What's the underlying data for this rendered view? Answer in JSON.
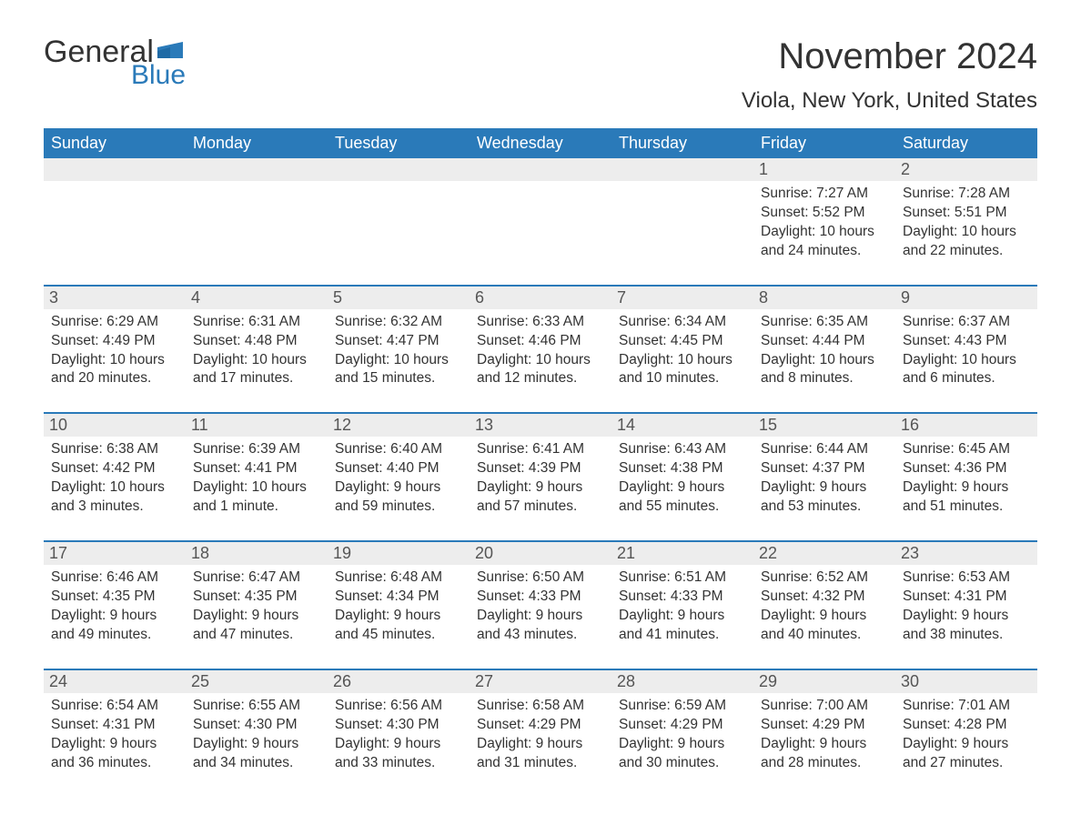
{
  "logo": {
    "word1": "General",
    "word2": "Blue",
    "flag_color": "#2a7ab9"
  },
  "title": "November 2024",
  "location": "Viola, New York, United States",
  "colors": {
    "header_bg": "#2a7ab9",
    "header_text": "#ffffff",
    "daynum_bg": "#ededed",
    "daynum_text": "#555555",
    "body_text": "#333333",
    "border": "#2a7ab9",
    "page_bg": "#ffffff"
  },
  "day_names": [
    "Sunday",
    "Monday",
    "Tuesday",
    "Wednesday",
    "Thursday",
    "Friday",
    "Saturday"
  ],
  "weeks": [
    [
      {
        "empty": true
      },
      {
        "empty": true
      },
      {
        "empty": true
      },
      {
        "empty": true
      },
      {
        "empty": true
      },
      {
        "n": "1",
        "sunrise": "Sunrise: 7:27 AM",
        "sunset": "Sunset: 5:52 PM",
        "d1": "Daylight: 10 hours",
        "d2": "and 24 minutes."
      },
      {
        "n": "2",
        "sunrise": "Sunrise: 7:28 AM",
        "sunset": "Sunset: 5:51 PM",
        "d1": "Daylight: 10 hours",
        "d2": "and 22 minutes."
      }
    ],
    [
      {
        "n": "3",
        "sunrise": "Sunrise: 6:29 AM",
        "sunset": "Sunset: 4:49 PM",
        "d1": "Daylight: 10 hours",
        "d2": "and 20 minutes."
      },
      {
        "n": "4",
        "sunrise": "Sunrise: 6:31 AM",
        "sunset": "Sunset: 4:48 PM",
        "d1": "Daylight: 10 hours",
        "d2": "and 17 minutes."
      },
      {
        "n": "5",
        "sunrise": "Sunrise: 6:32 AM",
        "sunset": "Sunset: 4:47 PM",
        "d1": "Daylight: 10 hours",
        "d2": "and 15 minutes."
      },
      {
        "n": "6",
        "sunrise": "Sunrise: 6:33 AM",
        "sunset": "Sunset: 4:46 PM",
        "d1": "Daylight: 10 hours",
        "d2": "and 12 minutes."
      },
      {
        "n": "7",
        "sunrise": "Sunrise: 6:34 AM",
        "sunset": "Sunset: 4:45 PM",
        "d1": "Daylight: 10 hours",
        "d2": "and 10 minutes."
      },
      {
        "n": "8",
        "sunrise": "Sunrise: 6:35 AM",
        "sunset": "Sunset: 4:44 PM",
        "d1": "Daylight: 10 hours",
        "d2": "and 8 minutes."
      },
      {
        "n": "9",
        "sunrise": "Sunrise: 6:37 AM",
        "sunset": "Sunset: 4:43 PM",
        "d1": "Daylight: 10 hours",
        "d2": "and 6 minutes."
      }
    ],
    [
      {
        "n": "10",
        "sunrise": "Sunrise: 6:38 AM",
        "sunset": "Sunset: 4:42 PM",
        "d1": "Daylight: 10 hours",
        "d2": "and 3 minutes."
      },
      {
        "n": "11",
        "sunrise": "Sunrise: 6:39 AM",
        "sunset": "Sunset: 4:41 PM",
        "d1": "Daylight: 10 hours",
        "d2": "and 1 minute."
      },
      {
        "n": "12",
        "sunrise": "Sunrise: 6:40 AM",
        "sunset": "Sunset: 4:40 PM",
        "d1": "Daylight: 9 hours",
        "d2": "and 59 minutes."
      },
      {
        "n": "13",
        "sunrise": "Sunrise: 6:41 AM",
        "sunset": "Sunset: 4:39 PM",
        "d1": "Daylight: 9 hours",
        "d2": "and 57 minutes."
      },
      {
        "n": "14",
        "sunrise": "Sunrise: 6:43 AM",
        "sunset": "Sunset: 4:38 PM",
        "d1": "Daylight: 9 hours",
        "d2": "and 55 minutes."
      },
      {
        "n": "15",
        "sunrise": "Sunrise: 6:44 AM",
        "sunset": "Sunset: 4:37 PM",
        "d1": "Daylight: 9 hours",
        "d2": "and 53 minutes."
      },
      {
        "n": "16",
        "sunrise": "Sunrise: 6:45 AM",
        "sunset": "Sunset: 4:36 PM",
        "d1": "Daylight: 9 hours",
        "d2": "and 51 minutes."
      }
    ],
    [
      {
        "n": "17",
        "sunrise": "Sunrise: 6:46 AM",
        "sunset": "Sunset: 4:35 PM",
        "d1": "Daylight: 9 hours",
        "d2": "and 49 minutes."
      },
      {
        "n": "18",
        "sunrise": "Sunrise: 6:47 AM",
        "sunset": "Sunset: 4:35 PM",
        "d1": "Daylight: 9 hours",
        "d2": "and 47 minutes."
      },
      {
        "n": "19",
        "sunrise": "Sunrise: 6:48 AM",
        "sunset": "Sunset: 4:34 PM",
        "d1": "Daylight: 9 hours",
        "d2": "and 45 minutes."
      },
      {
        "n": "20",
        "sunrise": "Sunrise: 6:50 AM",
        "sunset": "Sunset: 4:33 PM",
        "d1": "Daylight: 9 hours",
        "d2": "and 43 minutes."
      },
      {
        "n": "21",
        "sunrise": "Sunrise: 6:51 AM",
        "sunset": "Sunset: 4:33 PM",
        "d1": "Daylight: 9 hours",
        "d2": "and 41 minutes."
      },
      {
        "n": "22",
        "sunrise": "Sunrise: 6:52 AM",
        "sunset": "Sunset: 4:32 PM",
        "d1": "Daylight: 9 hours",
        "d2": "and 40 minutes."
      },
      {
        "n": "23",
        "sunrise": "Sunrise: 6:53 AM",
        "sunset": "Sunset: 4:31 PM",
        "d1": "Daylight: 9 hours",
        "d2": "and 38 minutes."
      }
    ],
    [
      {
        "n": "24",
        "sunrise": "Sunrise: 6:54 AM",
        "sunset": "Sunset: 4:31 PM",
        "d1": "Daylight: 9 hours",
        "d2": "and 36 minutes."
      },
      {
        "n": "25",
        "sunrise": "Sunrise: 6:55 AM",
        "sunset": "Sunset: 4:30 PM",
        "d1": "Daylight: 9 hours",
        "d2": "and 34 minutes."
      },
      {
        "n": "26",
        "sunrise": "Sunrise: 6:56 AM",
        "sunset": "Sunset: 4:30 PM",
        "d1": "Daylight: 9 hours",
        "d2": "and 33 minutes."
      },
      {
        "n": "27",
        "sunrise": "Sunrise: 6:58 AM",
        "sunset": "Sunset: 4:29 PM",
        "d1": "Daylight: 9 hours",
        "d2": "and 31 minutes."
      },
      {
        "n": "28",
        "sunrise": "Sunrise: 6:59 AM",
        "sunset": "Sunset: 4:29 PM",
        "d1": "Daylight: 9 hours",
        "d2": "and 30 minutes."
      },
      {
        "n": "29",
        "sunrise": "Sunrise: 7:00 AM",
        "sunset": "Sunset: 4:29 PM",
        "d1": "Daylight: 9 hours",
        "d2": "and 28 minutes."
      },
      {
        "n": "30",
        "sunrise": "Sunrise: 7:01 AM",
        "sunset": "Sunset: 4:28 PM",
        "d1": "Daylight: 9 hours",
        "d2": "and 27 minutes."
      }
    ]
  ]
}
